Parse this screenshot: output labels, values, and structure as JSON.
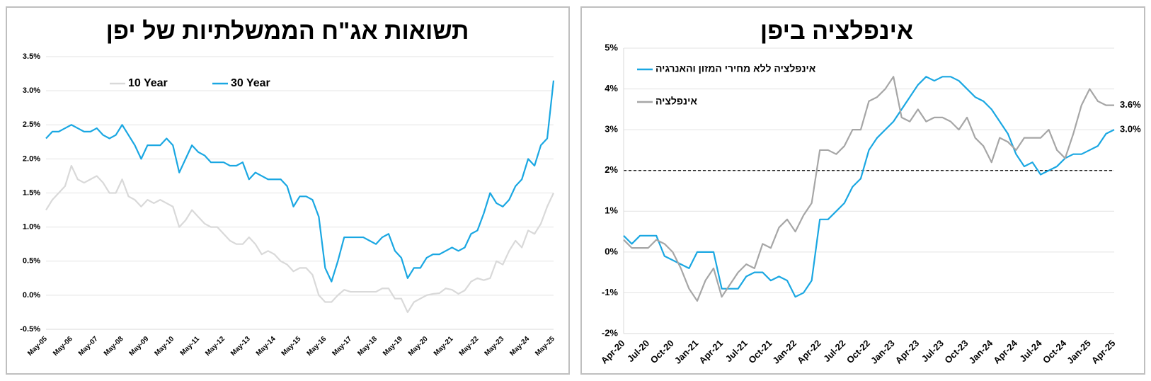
{
  "chart_data": [
    {
      "type": "line",
      "title": "תשואות אג\"ח הממשלתיות של יפן",
      "categories": [
        "May-05",
        null,
        null,
        null,
        "May-06",
        null,
        null,
        null,
        "May-07",
        null,
        null,
        null,
        "May-08",
        null,
        null,
        null,
        "May-09",
        null,
        null,
        null,
        "May-10",
        null,
        null,
        null,
        "May-11",
        null,
        null,
        null,
        "May-12",
        null,
        null,
        null,
        "May-13",
        null,
        null,
        null,
        "May-14",
        null,
        null,
        null,
        "May-15",
        null,
        null,
        null,
        "May-16",
        null,
        null,
        null,
        "May-17",
        null,
        null,
        null,
        "May-18",
        null,
        null,
        null,
        "May-19",
        null,
        null,
        null,
        "May-20",
        null,
        null,
        null,
        "May-21",
        null,
        null,
        null,
        "May-22",
        null,
        null,
        null,
        "May-23",
        null,
        null,
        null,
        "May-24",
        null,
        null,
        null,
        "May-25"
      ],
      "series": [
        {
          "name": "10 Year",
          "color": "#d9d9d9",
          "values": [
            1.25,
            1.4,
            1.5,
            1.6,
            1.9,
            1.7,
            1.65,
            1.7,
            1.75,
            1.65,
            1.5,
            1.5,
            1.7,
            1.45,
            1.4,
            1.3,
            1.4,
            1.35,
            1.4,
            1.35,
            1.3,
            1.0,
            1.1,
            1.25,
            1.15,
            1.05,
            1.0,
            1.0,
            0.9,
            0.8,
            0.75,
            0.75,
            0.85,
            0.75,
            0.6,
            0.65,
            0.6,
            0.5,
            0.45,
            0.35,
            0.4,
            0.4,
            0.3,
            0.0,
            -0.1,
            -0.1,
            0.0,
            0.08,
            0.05,
            0.05,
            0.05,
            0.05,
            0.05,
            0.1,
            0.1,
            -0.05,
            -0.05,
            -0.25,
            -0.1,
            -0.05,
            0.0,
            0.02,
            0.03,
            0.1,
            0.08,
            0.02,
            0.07,
            0.2,
            0.25,
            0.22,
            0.25,
            0.5,
            0.45,
            0.65,
            0.8,
            0.7,
            0.95,
            0.9,
            1.05,
            1.3,
            1.5
          ]
        },
        {
          "name": "30 Year",
          "color": "#1aa7e2",
          "values": [
            2.3,
            2.4,
            2.4,
            2.45,
            2.5,
            2.45,
            2.4,
            2.4,
            2.45,
            2.35,
            2.3,
            2.35,
            2.5,
            2.35,
            2.2,
            2.0,
            2.2,
            2.2,
            2.2,
            2.3,
            2.2,
            1.8,
            2.0,
            2.2,
            2.1,
            2.05,
            1.95,
            1.95,
            1.95,
            1.9,
            1.9,
            1.95,
            1.7,
            1.8,
            1.75,
            1.7,
            1.7,
            1.7,
            1.6,
            1.3,
            1.45,
            1.45,
            1.4,
            1.15,
            0.4,
            0.2,
            0.5,
            0.85,
            0.85,
            0.85,
            0.85,
            0.8,
            0.75,
            0.85,
            0.9,
            0.65,
            0.55,
            0.25,
            0.4,
            0.4,
            0.55,
            0.6,
            0.6,
            0.65,
            0.7,
            0.65,
            0.7,
            0.9,
            0.95,
            1.2,
            1.5,
            1.35,
            1.3,
            1.4,
            1.6,
            1.7,
            2.0,
            1.9,
            2.2,
            2.3,
            3.15
          ]
        }
      ],
      "ylim": [
        -0.5,
        3.5
      ],
      "yticks": [
        {
          "value": -0.5,
          "label": "-0.5%"
        },
        {
          "value": 0,
          "label": "0.0%"
        },
        {
          "value": 0.5,
          "label": "0.5%"
        },
        {
          "value": 1,
          "label": "1.0%"
        },
        {
          "value": 1.5,
          "label": "1.5%"
        },
        {
          "value": 2,
          "label": "2.0%"
        },
        {
          "value": 2.5,
          "label": "2.5%"
        },
        {
          "value": 3,
          "label": "3.0%"
        },
        {
          "value": 3.5,
          "label": "3.5%"
        }
      ],
      "grid": true,
      "legend": "top"
    },
    {
      "type": "line",
      "title": "אינפלציה ביפן",
      "categories": [
        "Apr-20",
        null,
        null,
        "Jul-20",
        null,
        null,
        "Oct-20",
        null,
        null,
        "Jan-21",
        null,
        null,
        "Apr-21",
        null,
        null,
        "Jul-21",
        null,
        null,
        "Oct-21",
        null,
        null,
        "Jan-22",
        null,
        null,
        "Apr-22",
        null,
        null,
        "Jul-22",
        null,
        null,
        "Oct-22",
        null,
        null,
        "Jan-23",
        null,
        null,
        "Apr-23",
        null,
        null,
        "Jul-23",
        null,
        null,
        "Oct-23",
        null,
        null,
        "Jan-24",
        null,
        null,
        "Apr-24",
        null,
        null,
        "Jul-24",
        null,
        null,
        "Oct-24",
        null,
        null,
        "Jan-25",
        null,
        null,
        "Apr-25"
      ],
      "series": [
        {
          "name": "אינפלציה ללא מחירי המזון והאנרגיה",
          "color": "#1aa7e2",
          "values": [
            0.4,
            0.2,
            0.4,
            0.4,
            0.4,
            -0.1,
            -0.2,
            -0.3,
            -0.4,
            0.0,
            0.0,
            0.0,
            -0.9,
            -0.9,
            -0.9,
            -0.6,
            -0.5,
            -0.5,
            -0.7,
            -0.6,
            -0.7,
            -1.1,
            -1.0,
            -0.7,
            0.8,
            0.8,
            1.0,
            1.2,
            1.6,
            1.8,
            2.5,
            2.8,
            3.0,
            3.2,
            3.5,
            3.8,
            4.1,
            4.3,
            4.2,
            4.3,
            4.3,
            4.2,
            4.0,
            3.8,
            3.7,
            3.5,
            3.2,
            2.9,
            2.4,
            2.1,
            2.2,
            1.9,
            2.0,
            2.1,
            2.3,
            2.4,
            2.4,
            2.5,
            2.6,
            2.9,
            3.0
          ],
          "value_labels": [
            null,
            null,
            null,
            null,
            null,
            null,
            null,
            null,
            null,
            null,
            null,
            null,
            null,
            null,
            null,
            null,
            null,
            null,
            null,
            null,
            null,
            null,
            null,
            null,
            null,
            null,
            null,
            null,
            null,
            null,
            null,
            null,
            null,
            null,
            null,
            null,
            null,
            null,
            null,
            null,
            null,
            null,
            null,
            null,
            null,
            null,
            null,
            null,
            null,
            null,
            null,
            null,
            null,
            null,
            null,
            null,
            null,
            null,
            null,
            null,
            "3.0%"
          ]
        },
        {
          "name": "אינפלציה",
          "color": "#a6a6a6",
          "values": [
            0.3,
            0.1,
            0.1,
            0.1,
            0.3,
            0.2,
            0.0,
            -0.4,
            -0.9,
            -1.2,
            -0.7,
            -0.4,
            -1.1,
            -0.8,
            -0.5,
            -0.3,
            -0.4,
            0.2,
            0.1,
            0.6,
            0.8,
            0.5,
            0.9,
            1.2,
            2.5,
            2.5,
            2.4,
            2.6,
            3.0,
            3.0,
            3.7,
            3.8,
            4.0,
            4.3,
            3.3,
            3.2,
            3.5,
            3.2,
            3.3,
            3.3,
            3.2,
            3.0,
            3.3,
            2.8,
            2.6,
            2.2,
            2.8,
            2.7,
            2.5,
            2.8,
            2.8,
            2.8,
            3.0,
            2.5,
            2.3,
            2.9,
            3.6,
            4.0,
            3.7,
            3.6,
            3.6
          ],
          "value_labels": [
            null,
            null,
            null,
            null,
            null,
            null,
            null,
            null,
            null,
            null,
            null,
            null,
            null,
            null,
            null,
            null,
            null,
            null,
            null,
            null,
            null,
            null,
            null,
            null,
            null,
            null,
            null,
            null,
            null,
            null,
            null,
            null,
            null,
            null,
            null,
            null,
            null,
            null,
            null,
            null,
            null,
            null,
            null,
            null,
            null,
            null,
            null,
            null,
            null,
            null,
            null,
            null,
            null,
            null,
            null,
            null,
            null,
            null,
            null,
            null,
            "3.6%"
          ]
        }
      ],
      "ylim": [
        -2,
        5
      ],
      "yticks": [
        {
          "value": -2,
          "label": "-2%"
        },
        {
          "value": -1,
          "label": "-1%"
        },
        {
          "value": 0,
          "label": "0%"
        },
        {
          "value": 1,
          "label": "1%"
        },
        {
          "value": 2,
          "label": "2%"
        },
        {
          "value": 3,
          "label": "3%"
        },
        {
          "value": 4,
          "label": "4%"
        },
        {
          "value": 5,
          "label": "5%"
        }
      ],
      "grid": true,
      "legend": "top-left",
      "reference_line": {
        "value": 2,
        "style": "dashed"
      }
    }
  ]
}
